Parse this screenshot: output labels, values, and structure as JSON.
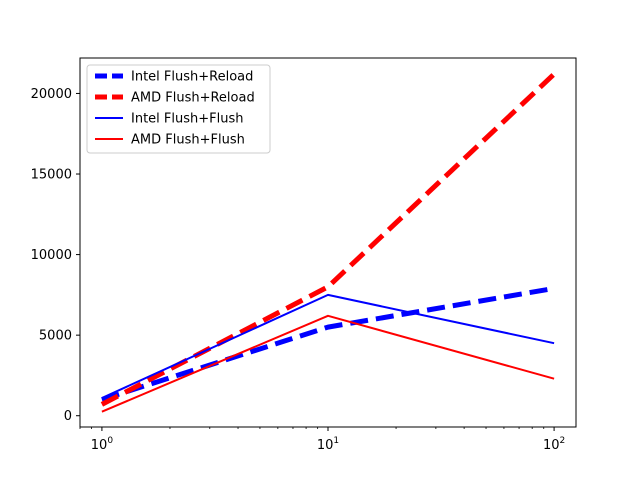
{
  "chart_data": {
    "type": "line",
    "title": "",
    "xlabel": "",
    "ylabel": "",
    "xscale": "log",
    "xlim": [
      0.8,
      125
    ],
    "ylim": [
      -700,
      22200
    ],
    "x": [
      1,
      10,
      100
    ],
    "x_ticks": [
      {
        "value": 1,
        "base": "10",
        "exp": "0"
      },
      {
        "value": 10,
        "base": "10",
        "exp": "1"
      },
      {
        "value": 100,
        "base": "10",
        "exp": "2"
      }
    ],
    "y_ticks": [
      0,
      5000,
      10000,
      15000,
      20000
    ],
    "grid": false,
    "legend_position": "top-left",
    "series": [
      {
        "name": "Intel Flush+Reload",
        "color": "#0000ff",
        "style": "dashed",
        "values": [
          1000,
          5500,
          7900
        ]
      },
      {
        "name": "AMD Flush+Reload",
        "color": "#ff0000",
        "style": "dashed",
        "values": [
          700,
          8000,
          21200
        ]
      },
      {
        "name": "Intel Flush+Flush",
        "color": "#0000ff",
        "style": "solid",
        "values": [
          1100,
          7500,
          4500
        ]
      },
      {
        "name": "AMD Flush+Flush",
        "color": "#ff0000",
        "style": "solid",
        "values": [
          250,
          6200,
          2300
        ]
      }
    ]
  }
}
